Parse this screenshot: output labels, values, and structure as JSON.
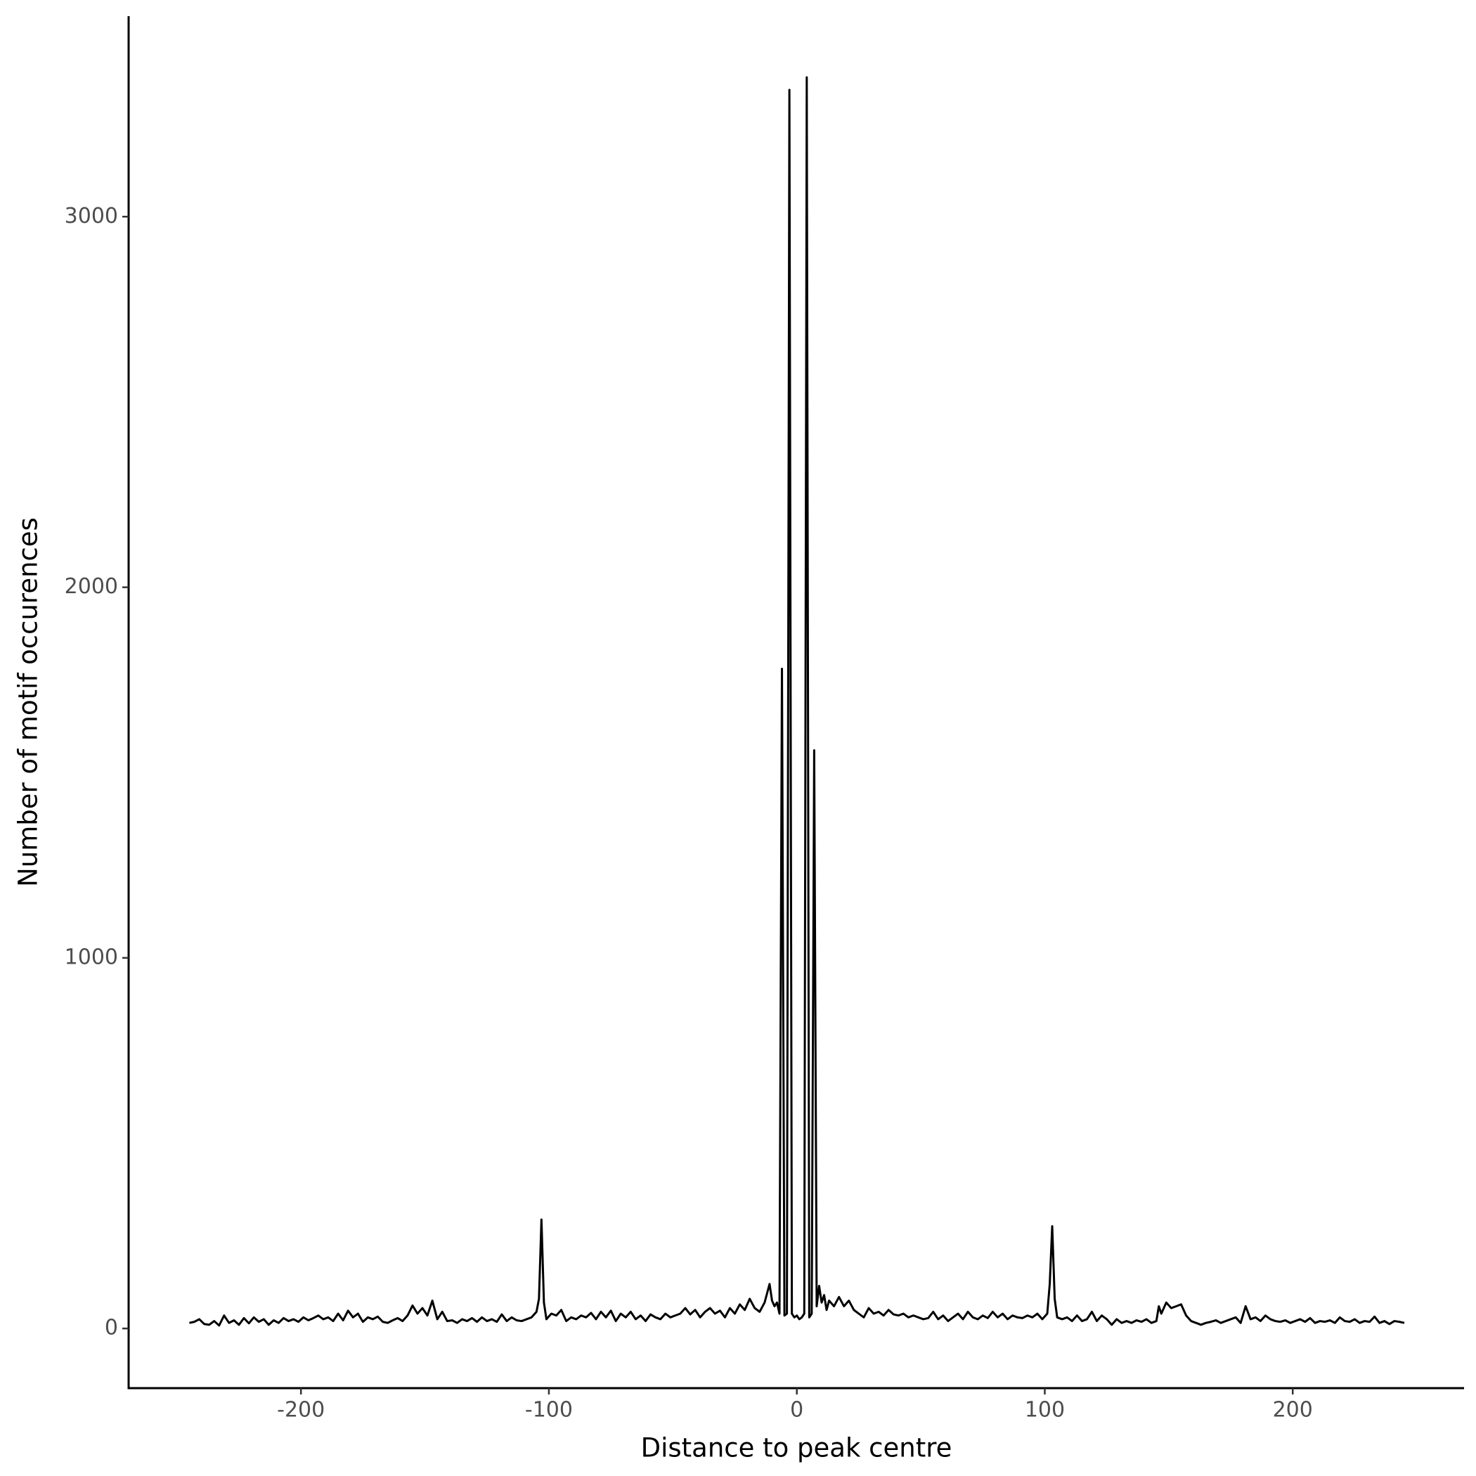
{
  "chart_data": {
    "type": "line",
    "x_label": "Distance to peak centre",
    "y_label": "Number of motif occurences",
    "xlim": [
      -269.5,
      269.1
    ],
    "ylim": [
      -161,
      3541
    ],
    "xticks": [
      -200,
      -100,
      0,
      100,
      200
    ],
    "yticks": [
      0,
      1000,
      2000,
      3000
    ],
    "color": "#000000",
    "x": [
      -245,
      -243,
      -241,
      -239,
      -237,
      -235,
      -233,
      -231,
      -229,
      -227,
      -225,
      -223,
      -221,
      -219,
      -217,
      -215,
      -213,
      -211,
      -209,
      -207,
      -205,
      -203,
      -201,
      -199,
      -197,
      -195,
      -193,
      -191,
      -189,
      -187,
      -185,
      -183,
      -181,
      -179,
      -177,
      -175,
      -173,
      -171,
      -169,
      -167,
      -165,
      -163,
      -161,
      -159,
      -157,
      -155,
      -153,
      -151,
      -149,
      -147,
      -145,
      -143,
      -141,
      -139,
      -137,
      -135,
      -133,
      -131,
      -129,
      -127,
      -125,
      -123,
      -121,
      -119,
      -117,
      -115,
      -113,
      -111,
      -109,
      -107,
      -105,
      -104,
      -103,
      -102,
      -101,
      -99,
      -97,
      -95,
      -93,
      -91,
      -89,
      -87,
      -85,
      -83,
      -81,
      -79,
      -77,
      -75,
      -73,
      -71,
      -69,
      -67,
      -65,
      -63,
      -61,
      -59,
      -57,
      -55,
      -53,
      -51,
      -49,
      -47,
      -45,
      -43,
      -41,
      -39,
      -37,
      -35,
      -33,
      -31,
      -29,
      -27,
      -25,
      -23,
      -21,
      -19,
      -17,
      -15,
      -13,
      -11,
      -10,
      -9,
      -8,
      -7,
      -6,
      -5,
      -4,
      -3,
      -2,
      -1,
      0,
      1,
      2,
      3,
      4,
      5,
      6,
      7,
      8,
      9,
      10,
      11,
      12,
      13,
      15,
      17,
      19,
      21,
      23,
      25,
      27,
      29,
      31,
      33,
      35,
      37,
      39,
      41,
      43,
      45,
      47,
      49,
      51,
      53,
      55,
      57,
      59,
      61,
      63,
      65,
      67,
      69,
      71,
      73,
      75,
      77,
      79,
      81,
      83,
      85,
      87,
      89,
      91,
      93,
      95,
      97,
      99,
      101,
      102,
      103,
      104,
      105,
      107,
      109,
      111,
      113,
      115,
      117,
      119,
      121,
      123,
      125,
      127,
      129,
      131,
      133,
      135,
      137,
      139,
      141,
      143,
      145,
      146,
      147,
      149,
      151,
      153,
      155,
      157,
      159,
      161,
      163,
      165,
      167,
      169,
      171,
      173,
      175,
      177,
      179,
      181,
      183,
      185,
      187,
      189,
      191,
      193,
      195,
      197,
      199,
      201,
      203,
      205,
      207,
      209,
      211,
      213,
      215,
      217,
      219,
      221,
      223,
      225,
      227,
      229,
      231,
      233,
      235,
      237,
      239,
      241,
      243,
      245
    ],
    "values": [
      15,
      18,
      25,
      12,
      10,
      20,
      8,
      35,
      15,
      22,
      10,
      28,
      14,
      30,
      18,
      25,
      10,
      22,
      15,
      28,
      20,
      25,
      18,
      30,
      22,
      28,
      35,
      25,
      30,
      20,
      40,
      22,
      48,
      30,
      40,
      18,
      30,
      25,
      32,
      18,
      15,
      22,
      28,
      20,
      35,
      62,
      40,
      55,
      35,
      75,
      25,
      45,
      20,
      22,
      15,
      25,
      20,
      28,
      18,
      30,
      20,
      25,
      18,
      38,
      20,
      30,
      22,
      20,
      25,
      30,
      45,
      80,
      294,
      70,
      25,
      40,
      35,
      50,
      20,
      30,
      25,
      35,
      30,
      42,
      25,
      45,
      30,
      48,
      20,
      40,
      30,
      45,
      25,
      35,
      20,
      38,
      30,
      25,
      40,
      30,
      35,
      40,
      55,
      38,
      50,
      30,
      45,
      55,
      40,
      48,
      30,
      55,
      40,
      65,
      50,
      80,
      55,
      45,
      70,
      120,
      75,
      60,
      70,
      40,
      1780,
      35,
      40,
      3342,
      40,
      30,
      35,
      25,
      30,
      40,
      3376,
      30,
      40,
      1560,
      60,
      115,
      70,
      90,
      50,
      75,
      60,
      85,
      60,
      75,
      50,
      40,
      30,
      55,
      40,
      45,
      35,
      50,
      38,
      35,
      40,
      30,
      35,
      30,
      25,
      28,
      45,
      25,
      35,
      20,
      30,
      40,
      25,
      45,
      30,
      25,
      35,
      28,
      45,
      30,
      40,
      25,
      35,
      30,
      28,
      35,
      30,
      40,
      25,
      40,
      120,
      276,
      80,
      30,
      25,
      30,
      20,
      35,
      20,
      25,
      45,
      20,
      35,
      25,
      10,
      25,
      15,
      20,
      15,
      22,
      18,
      25,
      15,
      20,
      60,
      40,
      70,
      55,
      60,
      65,
      35,
      20,
      15,
      10,
      15,
      18,
      22,
      15,
      20,
      25,
      30,
      15,
      60,
      25,
      30,
      20,
      35,
      25,
      20,
      18,
      22,
      15,
      20,
      25,
      18,
      28,
      15,
      20,
      18,
      22,
      15,
      30,
      20,
      18,
      25,
      15,
      20,
      18,
      32,
      15,
      20,
      12,
      20,
      18,
      15
    ]
  }
}
